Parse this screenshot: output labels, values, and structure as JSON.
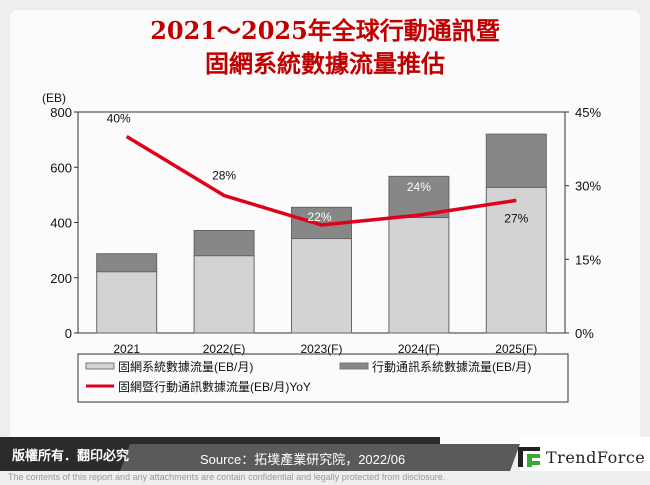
{
  "title": {
    "line1": "2021～2025年全球行動通訊暨",
    "line2": "固網系統數據流量推估"
  },
  "chart_data": {
    "type": "bar",
    "stacked": true,
    "title": "2021～2025年全球行動通訊暨固網系統數據流量推估",
    "categories": [
      "2021",
      "2022(E)",
      "2023(F)",
      "2024(F)",
      "2025(F)"
    ],
    "series": [
      {
        "name": "固網系統數據流量(EB/月)",
        "type": "bar",
        "color": "#d3d3d3",
        "values": [
          222,
          280,
          342,
          418,
          527
        ]
      },
      {
        "name": "行動通訊系統數據流量(EB/月)",
        "type": "bar",
        "color": "#878787",
        "values": [
          65,
          91,
          113,
          149,
          193
        ]
      },
      {
        "name": "固網暨行動通訊數據流量(EB/月)YoY",
        "type": "line",
        "axis": "right",
        "color": "#e0001b",
        "values": [
          40,
          28,
          22,
          24,
          27
        ],
        "labels": [
          "40%",
          "28%",
          "22%",
          "24%",
          "27%"
        ]
      }
    ],
    "ylabel": "(EB)",
    "ylim": [
      0,
      800
    ],
    "yticks": [
      "0",
      "200",
      "400",
      "600",
      "800"
    ],
    "y2lim": [
      0,
      45
    ],
    "y2ticks": [
      "0%",
      "15%",
      "30%",
      "45%"
    ],
    "grid": false,
    "legend_position": "bottom"
  },
  "footer": {
    "copyright": "版權所有．翻印必究",
    "source": "Source：拓墣產業研究院，2022/06",
    "brand": "TrendForce",
    "disclaimer": "The contents of this report and any attachments are contain confidential and legally protected from disclosure."
  }
}
